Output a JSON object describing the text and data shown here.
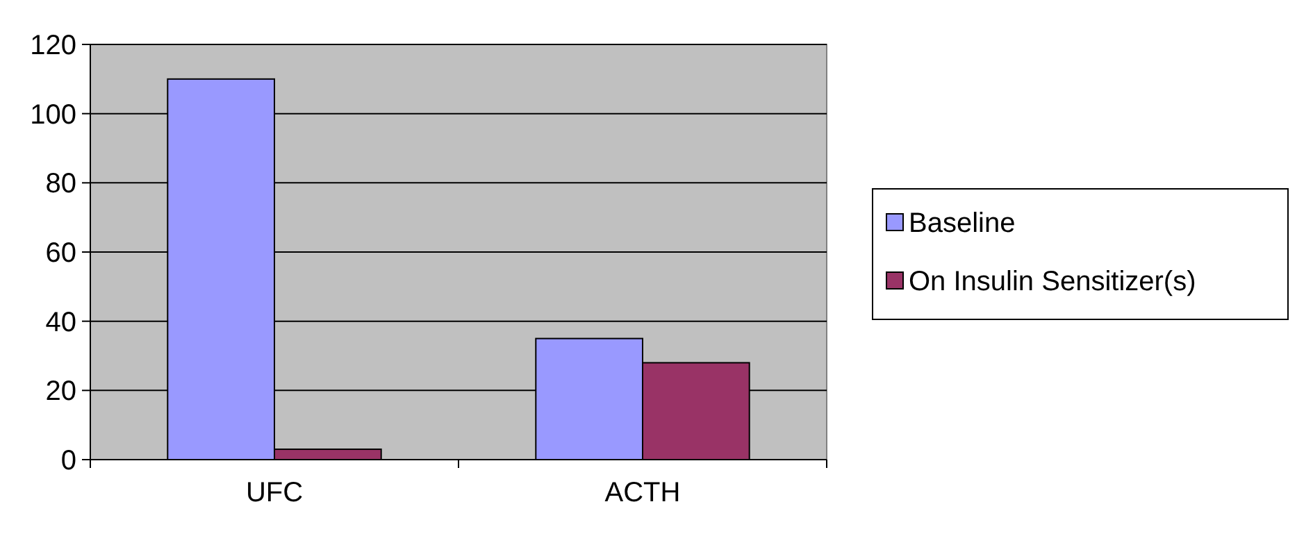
{
  "chart_data": {
    "type": "bar",
    "categories": [
      "UFC",
      "ACTH"
    ],
    "series": [
      {
        "name": "Baseline",
        "color": "#9999ff",
        "values": [
          110,
          35
        ]
      },
      {
        "name": "On Insulin Sensitizer(s)",
        "color": "#993366",
        "values": [
          3,
          28
        ]
      }
    ],
    "ylim": [
      0,
      120
    ],
    "yticks": [
      0,
      20,
      40,
      60,
      80,
      100,
      120
    ],
    "grid": "y",
    "legend": "right"
  }
}
